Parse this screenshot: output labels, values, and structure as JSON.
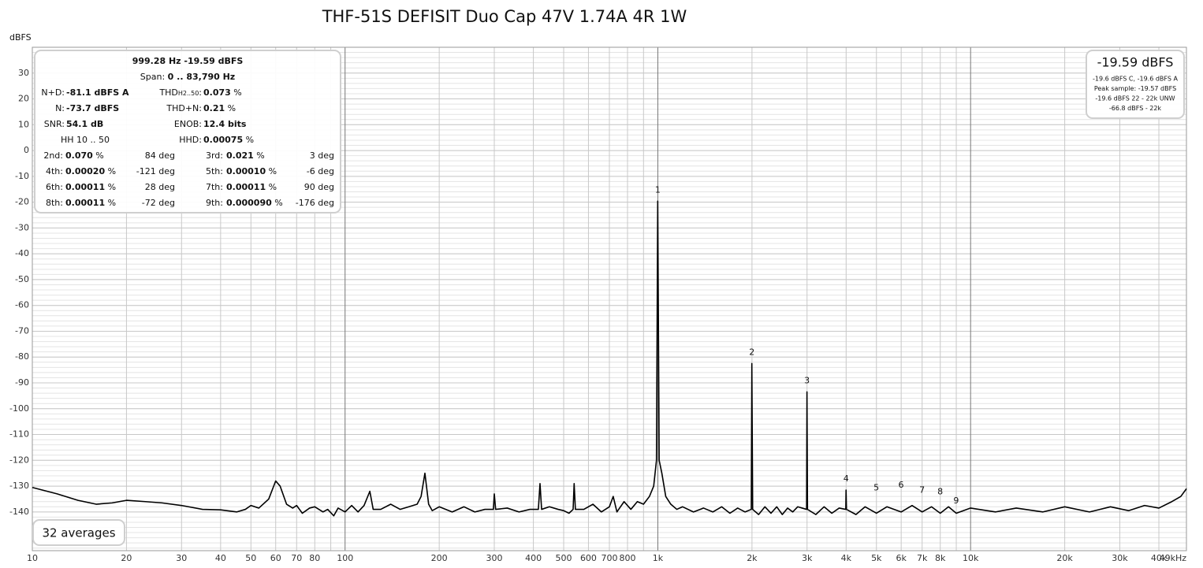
{
  "chart_data": {
    "type": "line",
    "title": "THF-51S DEFISIT Duo Cap 47V 1.74A 4R 1W",
    "y_label": "dBFS",
    "log_x": true,
    "grid": true,
    "xlim": [
      10,
      49000
    ],
    "ylim": [
      -155,
      40
    ],
    "y_minor_step": 2,
    "yticks": [
      30,
      20,
      10,
      0,
      -10,
      -20,
      -30,
      -40,
      -50,
      -60,
      -70,
      -80,
      -90,
      -100,
      -110,
      -120,
      -130,
      -140
    ],
    "xticks": [
      10,
      20,
      30,
      40,
      50,
      60,
      70,
      80,
      100,
      200,
      300,
      400,
      500,
      600,
      700,
      800,
      {
        "value": 1000,
        "label": "1k"
      },
      {
        "value": 2000,
        "label": "2k"
      },
      {
        "value": 3000,
        "label": "3k"
      },
      {
        "value": 4000,
        "label": "4k"
      },
      {
        "value": 5000,
        "label": "5k"
      },
      {
        "value": 6000,
        "label": "6k"
      },
      {
        "value": 7000,
        "label": "7k"
      },
      {
        "value": 8000,
        "label": "8k"
      },
      {
        "value": 10000,
        "label": "10k"
      },
      {
        "value": 20000,
        "label": "20k"
      },
      {
        "value": 30000,
        "label": "30k"
      },
      {
        "value": 40000,
        "label": "40k"
      },
      {
        "value": 49000,
        "label": "49kHz"
      }
    ],
    "xminorticks": [
      90,
      900,
      9000
    ],
    "series": [
      {
        "color": "#000000",
        "x": [
          10,
          12,
          14,
          16,
          18,
          20,
          23,
          26,
          30,
          35,
          40,
          45,
          48,
          50,
          53,
          57,
          60,
          62,
          65,
          68,
          70,
          73,
          77,
          80,
          85,
          88,
          92,
          95,
          100,
          105,
          110,
          115,
          120,
          123,
          130,
          140,
          150,
          160,
          170,
          175,
          180,
          185,
          190,
          200,
          220,
          240,
          260,
          280,
          298,
          300,
          303,
          330,
          360,
          390,
          415,
          420,
          425,
          450,
          480,
          500,
          520,
          536,
          540,
          545,
          580,
          620,
          660,
          700,
          720,
          740,
          780,
          820,
          860,
          900,
          940,
          970,
          990,
          999.28,
          1010,
          1030,
          1060,
          1100,
          1150,
          1200,
          1300,
          1400,
          1500,
          1600,
          1700,
          1800,
          1900,
          1990,
          1998,
          2010,
          2100,
          2200,
          2300,
          2400,
          2500,
          2600,
          2700,
          2800,
          2990,
          2998,
          3010,
          3200,
          3400,
          3600,
          3800,
          3990,
          3998,
          4010,
          4300,
          4600,
          5000,
          5400,
          6000,
          6500,
          7000,
          7500,
          8000,
          8500,
          9000,
          10000,
          12000,
          14000,
          17000,
          20000,
          24000,
          28000,
          32000,
          36000,
          40000,
          44000,
          47000,
          49000
        ],
        "values": [
          -130.5,
          -133,
          -135.5,
          -137,
          -136.5,
          -135.5,
          -136,
          -136.5,
          -137.5,
          -139,
          -139.2,
          -140,
          -139,
          -137.5,
          -138.5,
          -135,
          -128,
          -130,
          -137,
          -138.5,
          -137.5,
          -140.5,
          -138.5,
          -138,
          -140,
          -139,
          -141.5,
          -138.5,
          -140,
          -137.5,
          -140,
          -137.5,
          -132,
          -139,
          -139,
          -137,
          -139,
          -138,
          -137,
          -134,
          -125,
          -137,
          -139.5,
          -138,
          -140,
          -138,
          -140,
          -139,
          -139,
          -133,
          -139,
          -138.5,
          -140,
          -139,
          -139,
          -129,
          -139,
          -138,
          -139,
          -139.5,
          -140.5,
          -139,
          -129,
          -139,
          -139,
          -137,
          -140,
          -138,
          -134,
          -140,
          -136,
          -139,
          -136,
          -137,
          -134,
          -130,
          -120,
          -19.6,
          -120,
          -125,
          -134,
          -137,
          -139,
          -138,
          -140,
          -138.5,
          -140,
          -138,
          -140.5,
          -138.5,
          -140,
          -139,
          -82.5,
          -139,
          -141,
          -138,
          -140.5,
          -138,
          -141,
          -138.5,
          -140,
          -138,
          -139,
          -93.5,
          -139,
          -141,
          -138,
          -140.5,
          -138.5,
          -139,
          -131.5,
          -139,
          -141,
          -138,
          -140.5,
          -138,
          -140,
          -137.5,
          -140,
          -138,
          -140.5,
          -138,
          -140.5,
          -138.5,
          -140,
          -138.5,
          -140,
          -138,
          -140,
          -138,
          -139.5,
          -137.5,
          -138.5,
          -136,
          -134,
          -131
        ]
      }
    ],
    "harmonics": {
      "labels": [
        "1",
        "2",
        "3",
        "4",
        "5",
        "6",
        "7",
        "8",
        "9"
      ],
      "x": [
        999.28,
        1998,
        2998,
        3998,
        4997,
        5996,
        6995,
        7994,
        8994
      ],
      "y": [
        -19.6,
        -82.5,
        -93.5,
        -131.5,
        -135,
        -134,
        -136,
        -136.5,
        -140
      ]
    },
    "info_panel": {
      "rows": [
        [
          [
            {
              "b": "999.28 Hz  -19.59 dBFS"
            }
          ]
        ],
        [
          [
            "Span: ",
            {
              "b": "0 .. 83,790 Hz"
            }
          ]
        ],
        [
          "N+D:",
          [
            {
              "b": "-81.1 dBFS A"
            }
          ],
          [
            "THD",
            {
              "sub": "H2..50"
            },
            ":"
          ],
          [
            {
              "b": "0.073"
            },
            " %"
          ]
        ],
        [
          "N:",
          [
            {
              "b": "-73.7 dBFS"
            }
          ],
          "THD+N:",
          [
            {
              "b": "0.21"
            },
            " %"
          ]
        ],
        [
          "SNR:",
          [
            {
              "b": "54.1 dB"
            }
          ],
          "ENOB:",
          [
            {
              "b": "12.4 bits"
            }
          ]
        ],
        [
          "HH 10 .. 50",
          "HHD:",
          [
            {
              "b": "0.00075"
            },
            " %"
          ]
        ],
        [
          "2nd:",
          [
            {
              "b": "0.070"
            },
            " %"
          ],
          "84 deg",
          "3rd:",
          [
            {
              "b": "0.021"
            },
            " %"
          ],
          "3 deg"
        ],
        [
          "4th:",
          [
            {
              "b": "0.00020"
            },
            " %"
          ],
          "-121 deg",
          "5th:",
          [
            {
              "b": "0.00010"
            },
            " %"
          ],
          "-6 deg"
        ],
        [
          "6th:",
          [
            {
              "b": "0.00011"
            },
            " %"
          ],
          "28 deg",
          "7th:",
          [
            {
              "b": "0.00011"
            },
            " %"
          ],
          "90 deg"
        ],
        [
          "8th:",
          [
            {
              "b": "0.00011"
            },
            " %"
          ],
          "-72 deg",
          "9th:",
          [
            {
              "b": "0.000090"
            },
            " %"
          ],
          "-176 deg"
        ]
      ]
    },
    "level_box": {
      "main": "-19.59 dBFS",
      "lines": [
        "-19.6 dBFS C, -19.6 dBFS A",
        "Peak sample: -19.57 dBFS",
        "-19.6 dBFS 22 - 22k UNW",
        "-66.8 dBFS - 22k"
      ]
    },
    "averages": "32 averages"
  }
}
